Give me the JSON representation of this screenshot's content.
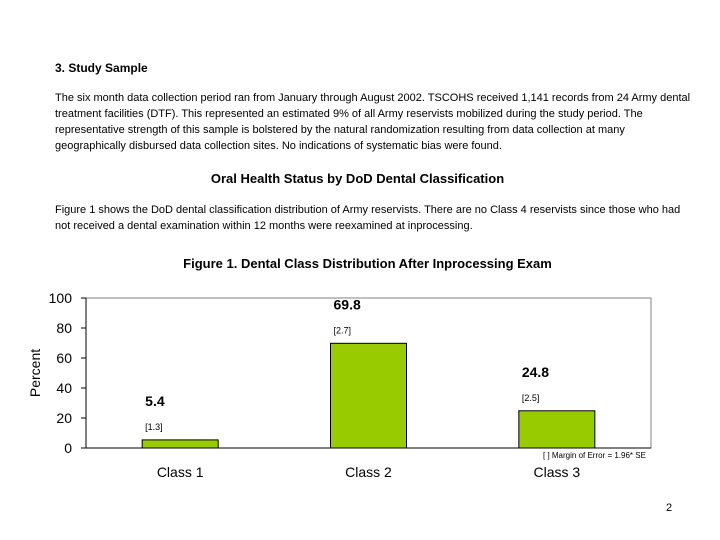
{
  "section": {
    "heading": "3.  Study Sample",
    "paragraph": "The six month data collection period ran from January through August 2002.  TSCOHS received 1,141 records from 24 Army dental treatment facilities (DTF). This represented an estimated 9% of all Army reservists mobilized during the study period.  The representative strength of this sample is bolstered by the natural randomization resulting from data collection at many geographically disbursed data collection sites.  No indications of systematic bias were found."
  },
  "oral_health": {
    "heading": "Oral Health Status by DoD Dental Classification",
    "paragraph": "Figure 1 shows the DoD dental classification distribution of Army reservists.  There are no Class 4 reservists since those who had not received a dental examination within 12 months were reexamined at inprocessing."
  },
  "figure": {
    "title": "Figure 1.  Dental Class Distribution After Inprocessing Exam"
  },
  "chart_data": {
    "type": "bar",
    "title": "Figure 1.  Dental Class Distribution After Inprocessing Exam",
    "categories": [
      "Class 1",
      "Class 2",
      "Class 3"
    ],
    "values": [
      5.4,
      69.8,
      24.8
    ],
    "value_labels": [
      "5.4",
      "69.8",
      "24.8"
    ],
    "margins_of_error": [
      "[1.3]",
      "[2.7]",
      "[2.5]"
    ],
    "ylabel": "Percent",
    "xlabel": "",
    "ylim": [
      0,
      100
    ],
    "yticks": [
      0,
      20,
      40,
      60,
      80,
      100
    ],
    "ytick_labels": [
      "0",
      "20",
      "40",
      "60",
      "80",
      "100"
    ],
    "note": "[ ] Margin of Error = 1.96* SE",
    "grid": false,
    "bar_color": "#99cc00"
  },
  "page_number": "2"
}
